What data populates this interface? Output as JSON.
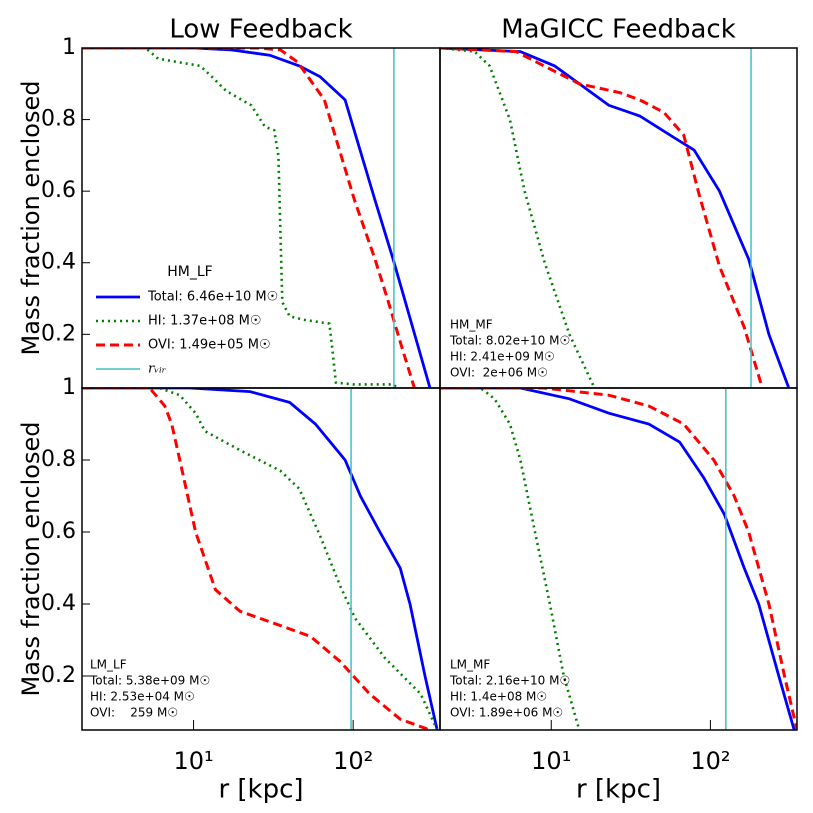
{
  "chart_data": [
    {
      "type": "line",
      "title": "Low Feedback",
      "ylabel": "Mass fraction enclosed",
      "xscale": "log",
      "xlim": [
        2,
        350
      ],
      "ylim": [
        0.05,
        1.0
      ],
      "yticks": [
        0.2,
        0.4,
        0.6,
        0.8,
        1.0
      ],
      "legend": {
        "title": "HM_LF",
        "handles": true
      },
      "series": [
        {
          "name": "Total: 6.46e+10 M☉",
          "color": "#0000ff",
          "style": "solid",
          "x": [
            2,
            10,
            17,
            30,
            46,
            62,
            89,
            137,
            178,
            211,
            303
          ],
          "values": [
            1,
            1,
            0.995,
            0.98,
            0.95,
            0.92,
            0.855,
            0.575,
            0.41,
            0.295,
            0.05
          ]
        },
        {
          "name": "HI: 1.37e+08 M☉",
          "color": "#008000",
          "style": "dotted",
          "x": [
            2,
            5,
            6,
            11,
            13,
            16,
            23,
            28,
            32,
            34,
            36,
            40,
            50,
            71,
            74,
            78,
            100,
            178,
            190
          ],
          "values": [
            1,
            1,
            0.97,
            0.95,
            0.92,
            0.88,
            0.84,
            0.78,
            0.77,
            0.7,
            0.29,
            0.25,
            0.24,
            0.23,
            0.16,
            0.065,
            0.06,
            0.06,
            0.05
          ]
        },
        {
          "name": "OVI: 1.49e+05 M☉",
          "color": "#ff0000",
          "style": "dashed",
          "x": [
            2,
            25,
            35,
            45,
            66,
            102,
            137,
            165,
            200,
            242
          ],
          "values": [
            1,
            1,
            0.995,
            0.96,
            0.855,
            0.575,
            0.41,
            0.295,
            0.17,
            0.05
          ]
        }
      ],
      "rvir": {
        "name": "rᵥᵢᵣ",
        "color": "#40c0c0",
        "value": 180
      }
    },
    {
      "type": "line",
      "title": "MaGICC Feedback",
      "xscale": "log",
      "xlim": [
        2,
        350
      ],
      "ylim": [
        0.05,
        1.0
      ],
      "legend": {
        "title": "HM_MF",
        "handles": false
      },
      "series": [
        {
          "name": "Total: 8.02e+10 M☉",
          "color": "#0000ff",
          "style": "solid",
          "x": [
            2,
            6.4,
            10.5,
            15,
            23,
            36,
            59,
            79,
            114,
            174,
            233,
            311
          ],
          "values": [
            1,
            0.99,
            0.95,
            0.9,
            0.84,
            0.81,
            0.75,
            0.715,
            0.6,
            0.41,
            0.2,
            0.05
          ]
        },
        {
          "name": "HI: 2.41e+09 M☉",
          "color": "#008000",
          "style": "dotted",
          "x": [
            2,
            3.3,
            4.1,
            5.5,
            6.8,
            9.1,
            13,
            18.7
          ],
          "values": [
            1,
            0.99,
            0.95,
            0.8,
            0.6,
            0.4,
            0.2,
            0.05
          ]
        },
        {
          "name": "OVI:  2e+06 M☉",
          "color": "#ff0000",
          "style": "dashed",
          "x": [
            2,
            6,
            9,
            15,
            27,
            36,
            51,
            68,
            85,
            114,
            163,
            212
          ],
          "values": [
            1,
            0.99,
            0.95,
            0.9,
            0.875,
            0.855,
            0.82,
            0.757,
            0.59,
            0.39,
            0.22,
            0.05
          ]
        }
      ],
      "rvir": {
        "color": "#40c0c0",
        "value": 180
      }
    },
    {
      "type": "line",
      "xlabel": "r [kpc]",
      "ylabel": "Mass fraction enclosed",
      "xscale": "log",
      "xlim": [
        2,
        350
      ],
      "ylim": [
        0.05,
        1.0
      ],
      "yticks": [
        0.2,
        0.4,
        0.6,
        0.8,
        1.0
      ],
      "xticks": [
        {
          "value": 10,
          "label": "10¹"
        },
        {
          "value": 100,
          "label": "10²"
        }
      ],
      "legend": {
        "title": "LM_LF",
        "handles": false
      },
      "series": [
        {
          "name": "Total: 5.38e+09 M☉",
          "color": "#0000ff",
          "style": "solid",
          "x": [
            2,
            9.5,
            22.6,
            40,
            58,
            89,
            111,
            147,
            197,
            227,
            282,
            336
          ],
          "values": [
            1,
            1,
            0.99,
            0.96,
            0.9,
            0.8,
            0.7,
            0.6,
            0.5,
            0.4,
            0.2,
            0.05
          ]
        },
        {
          "name": "HI: 2.53e+04 M☉",
          "color": "#008000",
          "style": "dotted",
          "x": [
            2,
            6.1,
            8.2,
            10.3,
            11.8,
            15.7,
            21,
            35,
            46,
            62,
            83,
            103,
            158,
            265,
            336
          ],
          "values": [
            1,
            1,
            0.98,
            0.93,
            0.88,
            0.85,
            0.82,
            0.77,
            0.72,
            0.59,
            0.45,
            0.36,
            0.25,
            0.15,
            0.05
          ]
        },
        {
          "name": "OVI:    259 M☉",
          "color": "#ff0000",
          "style": "dashed",
          "x": [
            2,
            5.3,
            6.6,
            7.3,
            8.2,
            10.3,
            13.7,
            19.5,
            35,
            54,
            83,
            127,
            197,
            303
          ],
          "values": [
            1,
            1,
            0.95,
            0.9,
            0.8,
            0.6,
            0.44,
            0.38,
            0.34,
            0.31,
            0.24,
            0.15,
            0.08,
            0.05
          ]
        }
      ],
      "rvir": {
        "color": "#40c0c0",
        "value": 97
      }
    },
    {
      "type": "line",
      "xlabel": "r [kpc]",
      "xscale": "log",
      "xlim": [
        2,
        350
      ],
      "ylim": [
        0.05,
        1.0
      ],
      "xticks": [
        {
          "value": 10,
          "label": "10¹"
        },
        {
          "value": 100,
          "label": "10²"
        }
      ],
      "legend": {
        "title": "LM_MF",
        "handles": false
      },
      "series": [
        {
          "name": "Total: 2.16e+10 M☉",
          "color": "#0000ff",
          "style": "solid",
          "x": [
            2,
            6.4,
            13,
            23,
            41,
            64,
            91,
            122,
            163,
            201,
            269,
            336
          ],
          "values": [
            1,
            1,
            0.97,
            0.93,
            0.9,
            0.85,
            0.75,
            0.65,
            0.5,
            0.4,
            0.2,
            0.05
          ]
        },
        {
          "name": "HI: 1.4e+08 M☉",
          "color": "#008000",
          "style": "dotted",
          "x": [
            2,
            3.6,
            4.4,
            5.5,
            6.4,
            7.9,
            9.8,
            12,
            15
          ],
          "values": [
            1,
            1,
            0.97,
            0.9,
            0.8,
            0.6,
            0.4,
            0.2,
            0.05
          ]
        },
        {
          "name": "OVI: 1.89e+06 M☉",
          "color": "#ff0000",
          "style": "dashed",
          "x": [
            2,
            9,
            23,
            41,
            68,
            105,
            141,
            174,
            233,
            292,
            350
          ],
          "values": [
            1,
            1,
            0.98,
            0.95,
            0.9,
            0.8,
            0.7,
            0.6,
            0.4,
            0.2,
            0.05
          ]
        }
      ],
      "rvir": {
        "color": "#40c0c0",
        "value": 125
      }
    }
  ]
}
